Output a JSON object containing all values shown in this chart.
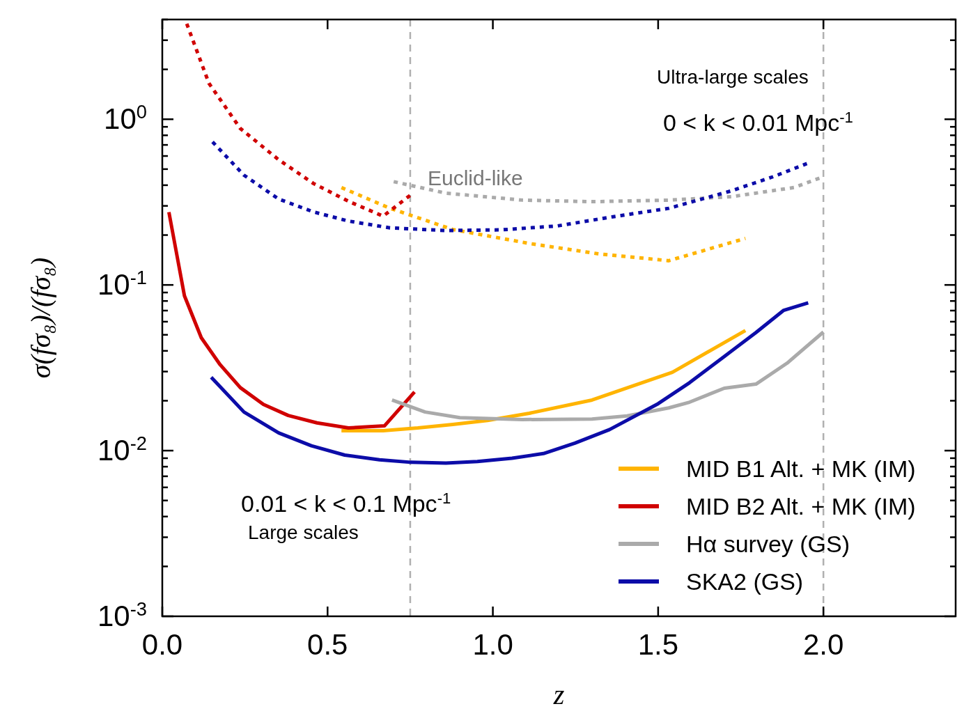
{
  "chart_data": {
    "type": "line",
    "xlabel": "z",
    "ylabel": "σ(fσ₈)/(fσ₈)",
    "log": "y",
    "xlim": [
      0,
      2.4
    ],
    "ylim": [
      0.001,
      4
    ],
    "xticks": [
      {
        "value": 0,
        "label": "0.0"
      },
      {
        "value": 0.5,
        "label": "0.5"
      },
      {
        "value": 1,
        "label": "1.0"
      },
      {
        "value": 1.5,
        "label": "1.5"
      },
      {
        "value": 2,
        "label": "2.0"
      }
    ],
    "yticks": [
      {
        "value": 0.001,
        "label": "10$^{-3}$"
      },
      {
        "value": 0.002,
        "label": null
      },
      {
        "value": 0.003,
        "label": null
      },
      {
        "value": 0.004,
        "label": null
      },
      {
        "value": 0.005,
        "label": null
      },
      {
        "value": 0.006,
        "label": null
      },
      {
        "value": 0.007,
        "label": null
      },
      {
        "value": 0.008,
        "label": null
      },
      {
        "value": 0.009,
        "label": null
      },
      {
        "value": 0.01,
        "label": "10$^{-2}$"
      },
      {
        "value": 0.02,
        "label": null
      },
      {
        "value": 0.03,
        "label": null
      },
      {
        "value": 0.04,
        "label": null
      },
      {
        "value": 0.05,
        "label": null
      },
      {
        "value": 0.06,
        "label": null
      },
      {
        "value": 0.07,
        "label": null
      },
      {
        "value": 0.08,
        "label": null
      },
      {
        "value": 0.09,
        "label": null
      },
      {
        "value": 0.1,
        "label": "10$^{-1}$"
      },
      {
        "value": 0.2,
        "label": null
      },
      {
        "value": 0.3,
        "label": null
      },
      {
        "value": 0.4,
        "label": null
      },
      {
        "value": 0.5,
        "label": null
      },
      {
        "value": 0.6,
        "label": null
      },
      {
        "value": 0.7,
        "label": null
      },
      {
        "value": 0.8,
        "label": null
      },
      {
        "value": 0.9,
        "label": null
      },
      {
        "value": 1,
        "label": "10$^{0}$"
      },
      {
        "value": 2,
        "label": null
      },
      {
        "value": 3,
        "label": null
      },
      {
        "value": 4,
        "label": null
      }
    ],
    "grid": false,
    "legend": "bottom right",
    "marker": "none",
    "ref_lines": [
      {
        "axis": "x",
        "value": 0.75,
        "color": "#b0b0b0",
        "line_style": "dashed"
      },
      {
        "axis": "x",
        "value": 2.0,
        "color": "#b0b0b0",
        "line_style": "dashed"
      }
    ],
    "annotations": [
      "Ultra-large scales",
      "0 < k < 0.01 Mpc$^{-1}$",
      "0.01 < k < 0.1 Mpc$^{-1}$",
      "Large scales",
      "Euclid-like"
    ],
    "series": [
      {
        "name": "MID B1 Alt. + MK (IM)",
        "color": "#ffb400",
        "line_style": "solid",
        "x": [
          0.542,
          0.668,
          0.773,
          0.879,
          0.984,
          1.11,
          1.3,
          1.543,
          1.764
        ],
        "values": [
          0.0132,
          0.0132,
          0.0137,
          0.0144,
          0.0152,
          0.0168,
          0.0202,
          0.0297,
          0.0531
        ]
      },
      {
        "name": "MID B2 Alt. + MK (IM)",
        "color": "#d00000",
        "line_style": "solid",
        "x": [
          0.02,
          0.067,
          0.118,
          0.175,
          0.236,
          0.306,
          0.381,
          0.468,
          0.563,
          0.672,
          0.763
        ],
        "values": [
          0.275,
          0.086,
          0.048,
          0.033,
          0.024,
          0.019,
          0.0163,
          0.0147,
          0.0137,
          0.0141,
          0.0226
        ]
      },
      {
        "name": "Hα survey (GS)",
        "color": "#aaaaaa",
        "line_style": "solid",
        "x": [
          0.695,
          0.795,
          0.9,
          1.09,
          1.3,
          1.406,
          1.532,
          1.595,
          1.7,
          1.796,
          1.89,
          2.0
        ],
        "values": [
          0.0202,
          0.0171,
          0.0158,
          0.0154,
          0.0155,
          0.0162,
          0.0181,
          0.0196,
          0.0238,
          0.0252,
          0.0337,
          0.052
        ]
      },
      {
        "name": "SKA2 (GS)",
        "color": "#0c0ca8",
        "line_style": "solid",
        "x": [
          0.148,
          0.247,
          0.352,
          0.451,
          0.552,
          0.657,
          0.752,
          0.858,
          0.953,
          1.058,
          1.153,
          1.248,
          1.353,
          1.5,
          1.595,
          1.7,
          1.796,
          1.88,
          1.954
        ],
        "values": [
          0.0277,
          0.0171,
          0.0128,
          0.0107,
          0.0094,
          0.0088,
          0.0085,
          0.0084,
          0.0086,
          0.009,
          0.0096,
          0.0111,
          0.0134,
          0.0192,
          0.0257,
          0.037,
          0.0516,
          0.0703,
          0.078
        ]
      },
      {
        "color": "#ffb400",
        "line_style": "dotted",
        "x": [
          0.542,
          0.689,
          0.879,
          1.11,
          1.32,
          1.532,
          1.764
        ],
        "values": [
          0.387,
          0.29,
          0.216,
          0.178,
          0.154,
          0.14,
          0.191
        ]
      },
      {
        "color": "#d00000",
        "line_style": "dotted",
        "x": [
          0.074,
          0.141,
          0.236,
          0.352,
          0.457,
          0.563,
          0.668,
          0.752
        ],
        "values": [
          3.77,
          1.65,
          0.88,
          0.57,
          0.41,
          0.32,
          0.26,
          0.35
        ]
      },
      {
        "color": "#aaaaaa",
        "line_style": "dotted",
        "x": [
          0.7,
          0.858,
          1.09,
          1.3,
          1.532,
          1.722,
          1.911,
          1.996
        ],
        "values": [
          0.42,
          0.358,
          0.325,
          0.318,
          0.325,
          0.341,
          0.387,
          0.447
        ]
      },
      {
        "color": "#0c0ca8",
        "line_style": "dotted",
        "x": [
          0.152,
          0.247,
          0.352,
          0.457,
          0.563,
          0.689,
          0.858,
          1.026,
          1.195,
          1.364,
          1.532,
          1.722,
          1.848,
          1.95
        ],
        "values": [
          0.73,
          0.46,
          0.33,
          0.276,
          0.243,
          0.221,
          0.213,
          0.215,
          0.227,
          0.258,
          0.29,
          0.37,
          0.45,
          0.54
        ]
      }
    ]
  }
}
